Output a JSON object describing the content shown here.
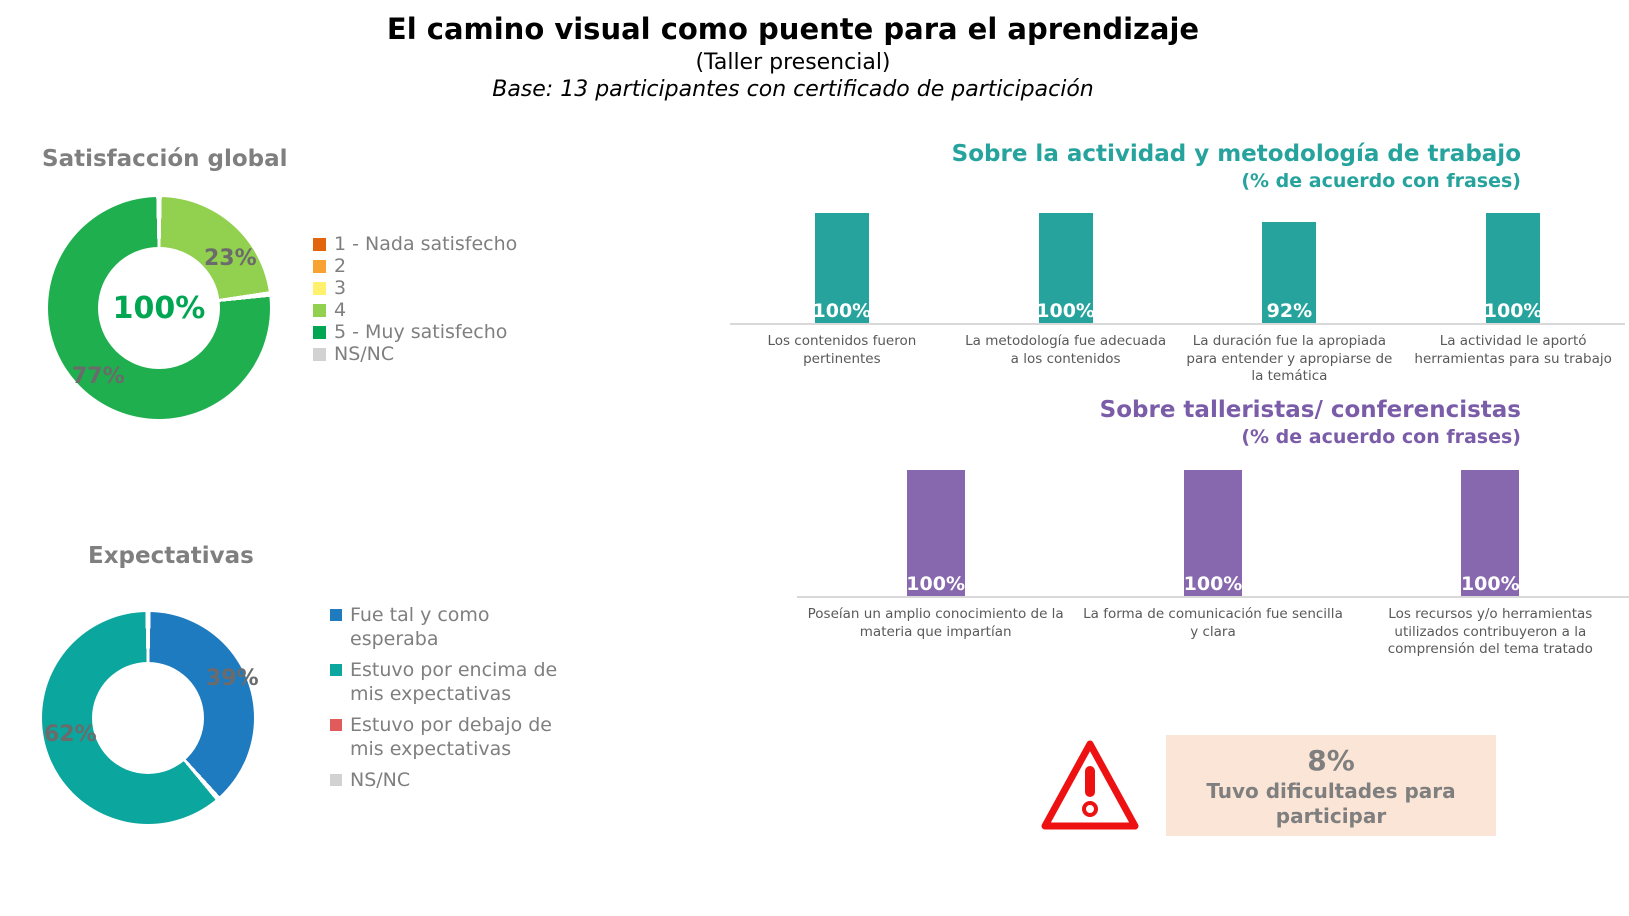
{
  "page": {
    "title": "El camino visual como puente para el aprendizaje",
    "subtitle": "(Taller presencial)",
    "base_note": "Base: 13 participantes con certificado de participación"
  },
  "colors": {
    "teal": "#26a39d",
    "purple_heading": "#7a5ca8",
    "green_center_text": "#00a651",
    "warning_red": "#ee1111",
    "warning_box_bg": "#fbe5d6",
    "gray_heading": "#7f7f7f",
    "caption_gray": "#595959",
    "baseline_gray": "#d9d9d9"
  },
  "chart_data": [
    {
      "id": "satisfaccion-global",
      "type": "pie",
      "subtype": "donut",
      "title": "Satisfacción global",
      "center_label": "100%",
      "slices": [
        {
          "category": "4",
          "value": 23,
          "display": "23%",
          "color": "#92d050"
        },
        {
          "category": "5 - Muy satisfecho",
          "value": 77,
          "display": "77%",
          "color": "#1faf4f"
        }
      ],
      "legend_position": "right",
      "legend": [
        {
          "label": "1 - Nada satisfecho",
          "color": "#e2640c"
        },
        {
          "label": "2",
          "color": "#f9a234"
        },
        {
          "label": "3",
          "color": "#fff16e"
        },
        {
          "label": "4",
          "color": "#92d050"
        },
        {
          "label": "5 - Muy satisfecho",
          "color": "#00a651"
        },
        {
          "label": "NS/NC",
          "color": "#d2d2d2"
        }
      ]
    },
    {
      "id": "expectativas",
      "type": "pie",
      "subtype": "donut",
      "title": "Expectativas",
      "center_label": "",
      "slices": [
        {
          "category": "Fue tal y como esperaba",
          "value": 39,
          "display": "39%",
          "color": "#1e7bc0"
        },
        {
          "category": "Estuvo por encima de mis expectativas",
          "value": 62,
          "display": "62%",
          "color": "#0ba69e"
        }
      ],
      "legend_position": "right",
      "legend": [
        {
          "label": "Fue tal y como esperaba",
          "color": "#1e7bc0"
        },
        {
          "label": "Estuvo por encima de mis expectativas",
          "color": "#0ba69e"
        },
        {
          "label": "Estuvo por debajo de mis expectativas",
          "color": "#e05c5c"
        },
        {
          "label": "NS/NC",
          "color": "#d2d2d2"
        }
      ]
    },
    {
      "id": "actividad-metodologia",
      "type": "bar",
      "title": "Sobre la actividad y metodología de trabajo",
      "subtitle": "(% de acuerdo con frases)",
      "bar_color": "#26a39d",
      "ylim": [
        0,
        100
      ],
      "grid": false,
      "value_label_position": "inside-bottom",
      "categories": [
        "Los contenidos fueron pertinentes",
        "La metodología fue adecuada a los contenidos",
        "La duración fue la apropiada para entender y apropiarse de la temática",
        "La actividad le aportó herramientas para su trabajo"
      ],
      "values": [
        100,
        100,
        92,
        100
      ],
      "value_labels": [
        "100%",
        "100%",
        "92%",
        "100%"
      ]
    },
    {
      "id": "talleristas-conferencistas",
      "type": "bar",
      "title": "Sobre talleristas/ conferencistas",
      "subtitle": "(% de acuerdo con frases)",
      "bar_color": "#8767ae",
      "ylim": [
        0,
        100
      ],
      "grid": false,
      "value_label_position": "inside-bottom",
      "categories": [
        "Poseían un amplio conocimiento de la materia que impartían",
        "La forma de comunicación fue sencilla y clara",
        "Los recursos y/o herramientas utilizados contribuyeron a la comprensión del tema tratado"
      ],
      "values": [
        100,
        100,
        100
      ],
      "value_labels": [
        "100%",
        "100%",
        "100%"
      ]
    }
  ],
  "warning": {
    "icon": "warning-triangle-icon",
    "value": "8%",
    "text": "Tuvo dificultades para participar"
  }
}
